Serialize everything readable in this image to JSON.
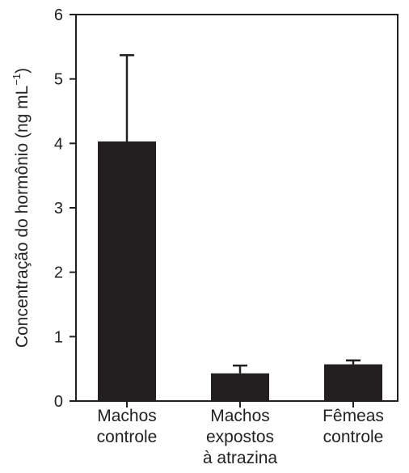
{
  "chart_data": {
    "type": "bar",
    "categories": [
      [
        "Machos",
        "controle"
      ],
      [
        "Machos",
        "expostos",
        "à atrazina"
      ],
      [
        "Fêmeas",
        "controle"
      ]
    ],
    "values": [
      4.03,
      0.43,
      0.57
    ],
    "error_upper": [
      5.37,
      0.55,
      0.63
    ],
    "ylabel": "Concentração do hormônio (ng mL",
    "ylabel_superscript": "−1",
    "ylabel_close": ")",
    "ylim": [
      0,
      6
    ],
    "yticks": [
      "0",
      "1",
      "2",
      "3",
      "4",
      "5",
      "6"
    ],
    "grid": false,
    "colors": {
      "bar": "#231f20",
      "axis": "#231f20"
    }
  }
}
